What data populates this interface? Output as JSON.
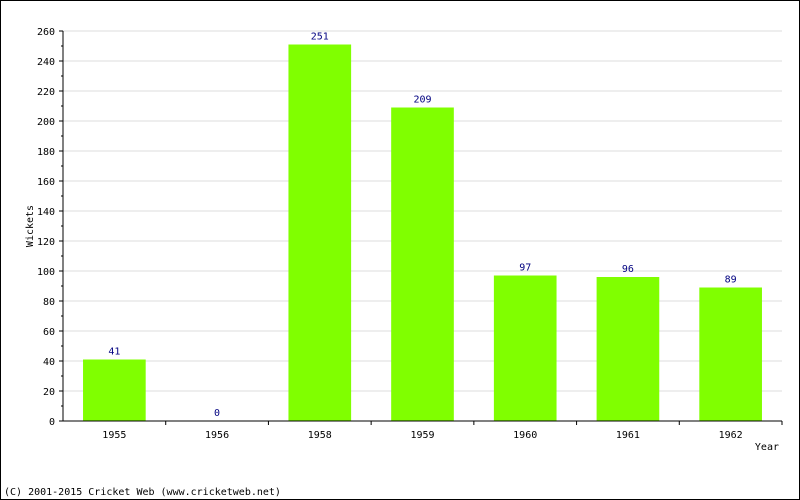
{
  "chart_data": {
    "type": "bar",
    "categories": [
      "1955",
      "1956",
      "1958",
      "1959",
      "1960",
      "1961",
      "1962"
    ],
    "values": [
      41,
      0,
      251,
      209,
      97,
      96,
      89
    ],
    "title": "",
    "xlabel": "Year",
    "ylabel": "Wickets",
    "ylim": [
      0,
      260
    ],
    "ytick_step": 20,
    "grid": true,
    "bar_color": "#80FF00",
    "value_label_color": "#000080"
  },
  "footer": {
    "copyright": "(C) 2001-2015 Cricket Web (www.cricketweb.net)"
  }
}
